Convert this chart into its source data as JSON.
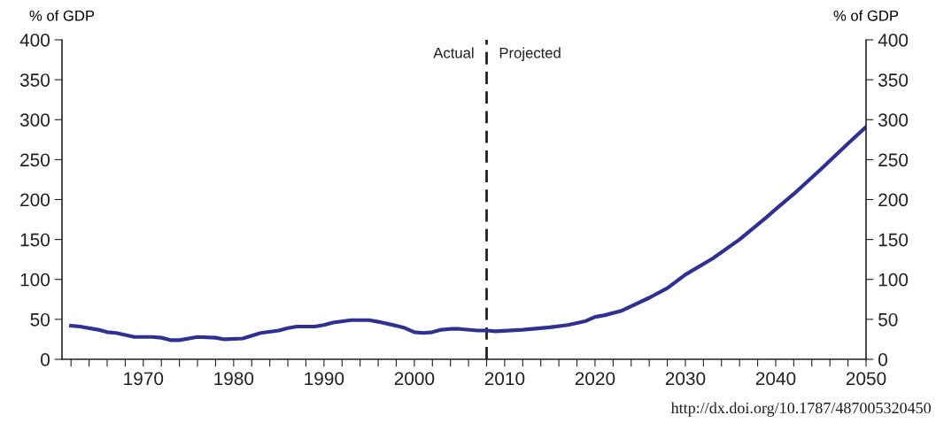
{
  "chart_data": {
    "type": "line",
    "ylabel": "% of GDP",
    "y2label": "% of GDP",
    "x": [
      1962,
      1963,
      1965,
      1966,
      1967,
      1969,
      1971,
      1972,
      1973,
      1974,
      1976,
      1978,
      1979,
      1981,
      1983,
      1985,
      1986,
      1987,
      1989,
      1990,
      1991,
      1993,
      1995,
      1996,
      1998,
      1999,
      2000,
      2001,
      2002,
      2003,
      2004,
      2005,
      2007,
      2008,
      2009,
      2012,
      2015,
      2017,
      2019,
      2020,
      2021,
      2023,
      2026,
      2028,
      2030,
      2033,
      2036,
      2039,
      2040,
      2042,
      2045,
      2048,
      2050
    ],
    "series": [
      {
        "color": "#2e3192",
        "values": [
          42,
          41,
          37,
          34,
          33,
          28,
          28,
          27,
          24,
          24,
          28,
          27,
          25,
          26,
          33,
          36,
          39,
          41,
          41,
          43,
          46,
          49,
          49,
          47,
          42,
          39,
          34,
          33,
          34,
          37,
          38,
          38,
          36,
          36,
          35,
          37,
          40,
          43,
          48,
          53,
          55,
          61,
          77,
          89,
          106,
          126,
          150,
          178,
          188,
          207,
          238,
          270,
          291
        ]
      }
    ],
    "xlim": [
      1961,
      2050
    ],
    "ylim": [
      0,
      400
    ],
    "y2lim": [
      0,
      400
    ],
    "yticks": [
      0,
      50,
      100,
      150,
      200,
      250,
      300,
      350,
      400
    ],
    "y2ticks": [
      0,
      50,
      100,
      150,
      200,
      250,
      300,
      350,
      400
    ],
    "xticks": [
      {
        "value": 1962,
        "label": null
      },
      {
        "value": 1964,
        "label": null
      },
      {
        "value": 1966,
        "label": null
      },
      {
        "value": 1968,
        "label": null
      },
      1970,
      {
        "value": 1972,
        "label": null
      },
      {
        "value": 1974,
        "label": null
      },
      {
        "value": 1976,
        "label": null
      },
      {
        "value": 1978,
        "label": null
      },
      1980,
      {
        "value": 1982,
        "label": null
      },
      {
        "value": 1984,
        "label": null
      },
      {
        "value": 1986,
        "label": null
      },
      {
        "value": 1988,
        "label": null
      },
      1990,
      {
        "value": 1992,
        "label": null
      },
      {
        "value": 1994,
        "label": null
      },
      {
        "value": 1996,
        "label": null
      },
      {
        "value": 1998,
        "label": null
      },
      2000,
      {
        "value": 2002,
        "label": null
      },
      {
        "value": 2004,
        "label": null
      },
      {
        "value": 2006,
        "label": null
      },
      {
        "value": 2008,
        "label": null
      },
      2010,
      {
        "value": 2012,
        "label": null
      },
      {
        "value": 2014,
        "label": null
      },
      {
        "value": 2016,
        "label": null
      },
      {
        "value": 2018,
        "label": null
      },
      2020,
      {
        "value": 2022,
        "label": null
      },
      {
        "value": 2024,
        "label": null
      },
      {
        "value": 2026,
        "label": null
      },
      {
        "value": 2028,
        "label": null
      },
      2030,
      {
        "value": 2032,
        "label": null
      },
      {
        "value": 2034,
        "label": null
      },
      {
        "value": 2036,
        "label": null
      },
      {
        "value": 2038,
        "label": null
      },
      2040,
      {
        "value": 2042,
        "label": null
      },
      {
        "value": 2044,
        "label": null
      },
      {
        "value": 2046,
        "label": null
      },
      {
        "value": 2048,
        "label": null
      },
      2050
    ],
    "ref_lines": [
      {
        "axis": "x",
        "value": 2008,
        "color": "#231f20",
        "line_style": "dashed"
      }
    ],
    "annotations": [
      {
        "text": "Actual",
        "x": 2008,
        "y": 382
      },
      {
        "text": "Projected",
        "x": 2008,
        "y": 382
      },
      "http://dx.doi.org/10.1787/487005320450"
    ],
    "grid": false,
    "marker": "none",
    "line_style": "solid"
  }
}
